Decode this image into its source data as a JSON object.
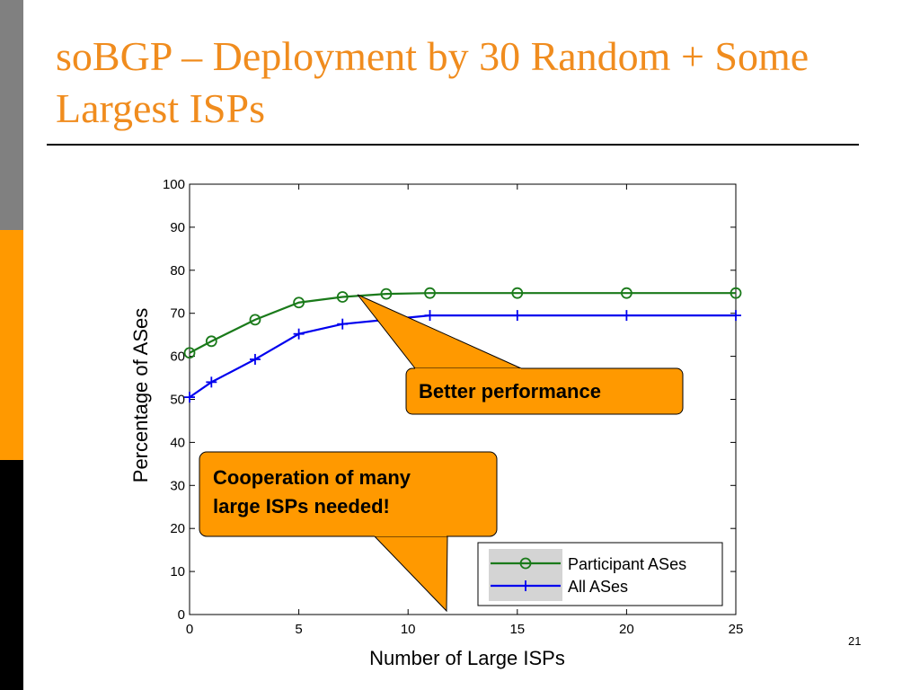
{
  "slide": {
    "title": "soBGP – Deployment by 30 Random + Some Largest ISPs",
    "page_number": "21"
  },
  "colors": {
    "title": "#f08c1e",
    "callout_fill": "#ff9900",
    "participant_line": "#1a7a1a",
    "all_line": "#0000ee"
  },
  "callouts": {
    "performance": "Better performance",
    "cooperation_line1": "Cooperation of many",
    "cooperation_line2": "large ISPs needed!"
  },
  "chart_data": {
    "type": "line",
    "title": "",
    "xlabel": "Number of Large ISPs",
    "ylabel": "Percentage of ASes",
    "xlim": [
      0,
      25
    ],
    "ylim": [
      0,
      100
    ],
    "xticks": [
      0,
      5,
      10,
      15,
      20,
      25
    ],
    "yticks": [
      0,
      10,
      20,
      30,
      40,
      50,
      60,
      70,
      80,
      90,
      100
    ],
    "grid": false,
    "legend_position": "bottom-right",
    "series": [
      {
        "name": "Participant ASes",
        "marker": "circle",
        "color": "#1a7a1a",
        "x": [
          0,
          1,
          3,
          5,
          7,
          9,
          11,
          15,
          20,
          25
        ],
        "y": [
          60.8,
          63.5,
          68.5,
          72.5,
          73.8,
          74.5,
          74.7,
          74.7,
          74.7,
          74.7
        ]
      },
      {
        "name": "All ASes",
        "marker": "plus",
        "color": "#0000ee",
        "x": [
          0,
          1,
          3,
          5,
          7,
          9,
          11,
          15,
          20,
          25
        ],
        "y": [
          50.5,
          54.0,
          59.3,
          65.2,
          67.5,
          68.5,
          69.5,
          69.5,
          69.5,
          69.5
        ]
      }
    ]
  }
}
